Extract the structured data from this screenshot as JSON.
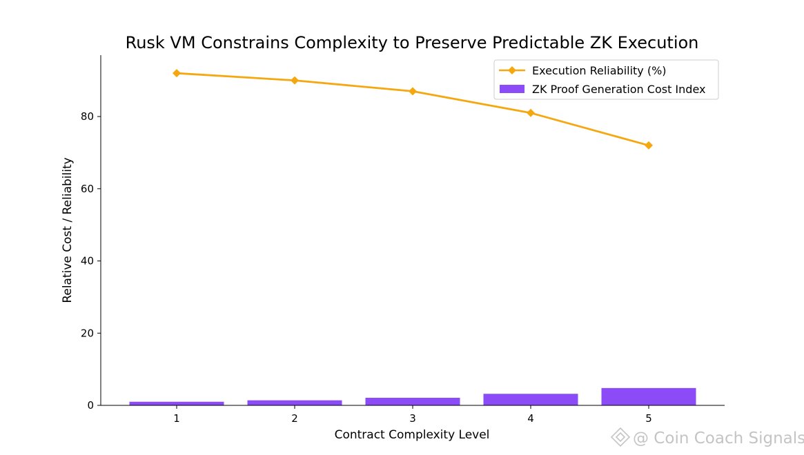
{
  "chart_data": {
    "type": "bar",
    "title": "Rusk VM Constrains Complexity to Preserve Predictable ZK Execution",
    "xlabel": "Contract Complexity Level",
    "ylabel": "Relative Cost / Reliability",
    "categories": [
      "1",
      "2",
      "3",
      "4",
      "5"
    ],
    "ylim": [
      0,
      97
    ],
    "yticks": [
      0,
      20,
      40,
      60,
      80
    ],
    "grid": false,
    "legend_position": "top-right",
    "series": [
      {
        "name": "ZK Proof Generation Cost Index",
        "type": "bar",
        "color": "#8b4cf7",
        "values": [
          1.0,
          1.4,
          2.1,
          3.2,
          4.8
        ]
      },
      {
        "name": "Execution Reliability (%)",
        "type": "line",
        "marker": "diamond",
        "color": "#f5a70f",
        "values": [
          92,
          90,
          87,
          81,
          72
        ]
      }
    ]
  },
  "watermark": {
    "text": "@ Coin Coach Signals",
    "icon": "binance-diamond-icon"
  }
}
